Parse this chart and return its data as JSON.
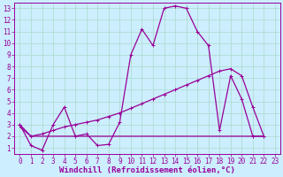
{
  "background_color": "#cceeff",
  "grid_color": "#b0ddd0",
  "line_color": "#990099",
  "xlabel": "Windchill (Refroidissement éolien,°C)",
  "xlabel_fontsize": 6.5,
  "xlim": [
    -0.5,
    23.5
  ],
  "ylim": [
    0.5,
    13.5
  ],
  "xticks": [
    0,
    1,
    2,
    3,
    4,
    5,
    6,
    7,
    8,
    9,
    10,
    11,
    12,
    13,
    14,
    15,
    16,
    17,
    18,
    19,
    20,
    21,
    22,
    23
  ],
  "yticks": [
    1,
    2,
    3,
    4,
    5,
    6,
    7,
    8,
    9,
    10,
    11,
    12,
    13
  ],
  "tick_fontsize": 5.5,
  "series_zigzag": {
    "x": [
      0,
      1,
      2,
      3,
      4,
      5,
      6,
      7,
      8,
      9,
      10,
      11,
      12,
      13,
      14,
      15,
      16,
      17,
      18,
      19,
      20,
      21,
      22
    ],
    "y": [
      3.0,
      1.2,
      0.8,
      3.0,
      4.5,
      2.0,
      2.2,
      1.2,
      1.3,
      3.2,
      9.0,
      11.2,
      9.8,
      13.0,
      13.2,
      13.0,
      11.0,
      9.8,
      2.5,
      7.2,
      5.2,
      2.0,
      2.0
    ]
  },
  "series_flat": {
    "x": [
      0,
      1,
      2,
      3,
      4,
      5,
      6,
      7,
      8,
      9,
      10,
      11,
      12,
      13,
      14,
      15,
      16,
      17,
      18,
      19,
      20,
      21,
      22
    ],
    "y": [
      2.8,
      2.0,
      2.0,
      2.0,
      2.0,
      2.0,
      2.0,
      2.0,
      2.0,
      2.0,
      2.0,
      2.0,
      2.0,
      2.0,
      2.0,
      2.0,
      2.0,
      2.0,
      2.0,
      2.0,
      2.0,
      2.0,
      2.0
    ]
  },
  "series_diagonal": {
    "x": [
      0,
      1,
      2,
      3,
      4,
      5,
      6,
      7,
      8,
      9,
      10,
      11,
      12,
      13,
      14,
      15,
      16,
      17,
      18,
      19,
      20,
      21,
      22
    ],
    "y": [
      3.0,
      2.0,
      2.2,
      2.5,
      2.8,
      3.0,
      3.2,
      3.4,
      3.7,
      4.0,
      4.4,
      4.8,
      5.2,
      5.6,
      6.0,
      6.4,
      6.8,
      7.2,
      7.6,
      7.8,
      7.2,
      4.5,
      2.0
    ]
  }
}
